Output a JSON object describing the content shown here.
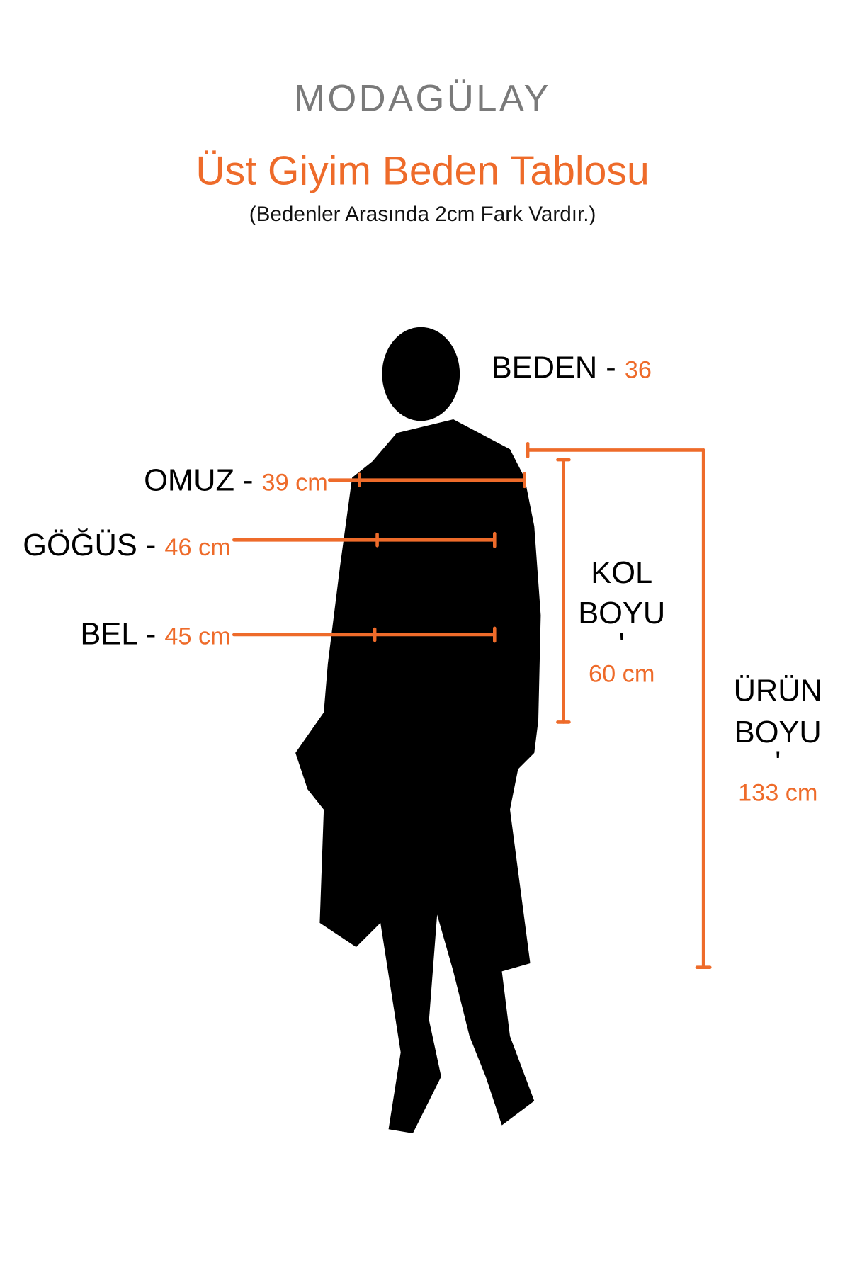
{
  "brand": {
    "logo_text": "MODAGÜLAY",
    "logo_color": "#7a7a7a"
  },
  "header": {
    "title": "Üst Giyim Beden Tablosu",
    "subtitle": "(Bedenler Arasında 2cm Fark Vardır.)"
  },
  "colors": {
    "accent": "#ee6b2a",
    "silhouette": "#000000"
  },
  "size": {
    "label": "BEDEN -",
    "value": "36"
  },
  "measurements": {
    "shoulder": {
      "label": "OMUZ -",
      "value": "39 cm"
    },
    "chest": {
      "label": "GÖĞÜS -",
      "value": "46 cm"
    },
    "waist": {
      "label": "BEL -",
      "value": "45 cm"
    },
    "sleeve": {
      "label_line1": "KOL",
      "label_line2": "BOYU",
      "separator": "'",
      "value": "60 cm"
    },
    "length": {
      "label_line1": "ÜRÜN",
      "label_line2": "BOYU",
      "separator": "'",
      "value": "133 cm"
    }
  }
}
